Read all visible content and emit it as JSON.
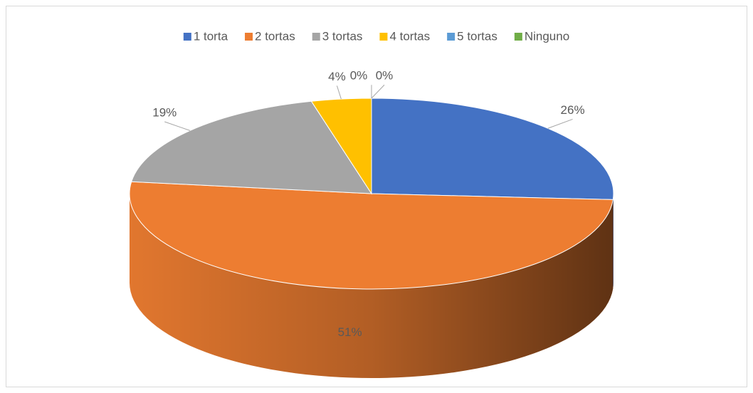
{
  "chart_data": {
    "type": "pie",
    "categories": [
      "1 torta",
      "2 tortas",
      "3 tortas",
      "4 tortas",
      "5 tortas",
      "Ninguno"
    ],
    "values": [
      26,
      51,
      19,
      4,
      0,
      0
    ],
    "value_labels": [
      "26%",
      "51%",
      "19%",
      "4%",
      "0%",
      "0%"
    ],
    "colors": [
      "#4472c4",
      "#ed7d31",
      "#a5a5a5",
      "#ffc000",
      "#5b9bd5",
      "#70ad47"
    ],
    "legend": "top"
  }
}
